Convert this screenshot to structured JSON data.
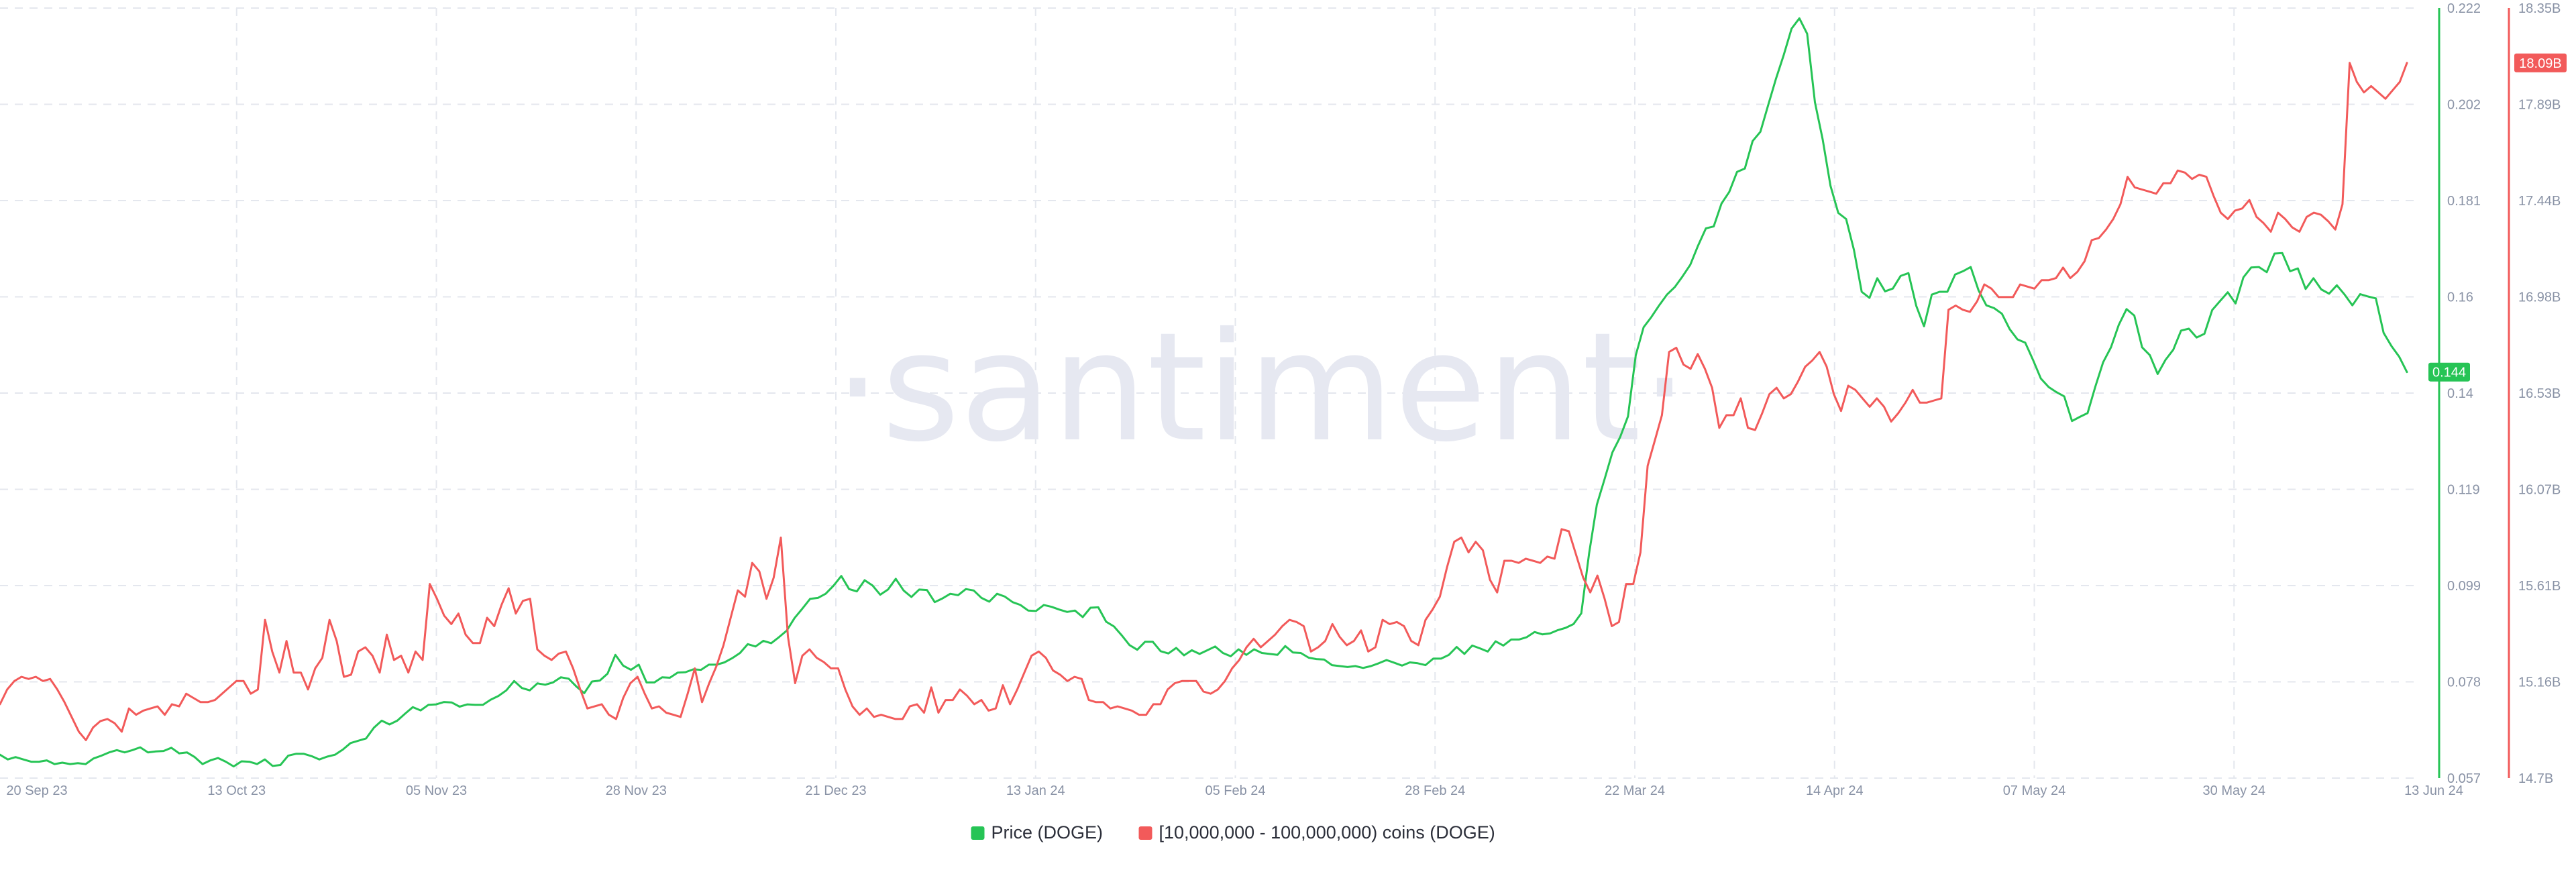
{
  "watermark": "·santiment·",
  "chart_data": {
    "type": "line",
    "title": "",
    "xlabel": "",
    "x_ticks": [
      "20 Sep 23",
      "13 Oct 23",
      "05 Nov 23",
      "28 Nov 23",
      "21 Dec 23",
      "13 Jan 24",
      "05 Feb 24",
      "28 Feb 24",
      "22 Mar 24",
      "14 Apr 24",
      "07 May 24",
      "30 May 24",
      "13 Jun 24"
    ],
    "grid": true,
    "legend_position": "bottom-center",
    "y_axes": {
      "left_inner": {
        "ticks": [
          "0.057",
          "0.078",
          "0.099",
          "0.119",
          "0.14",
          "0.16",
          "0.181",
          "0.202",
          "0.222"
        ],
        "range": [
          0.057,
          0.222
        ],
        "color": "#26c455"
      },
      "right": {
        "ticks": [
          "14.7B",
          "15.16B",
          "15.61B",
          "16.07B",
          "16.53B",
          "16.98B",
          "17.44B",
          "17.89B",
          "18.35B"
        ],
        "range": [
          14.7,
          18.35
        ],
        "unit": "B",
        "color": "#f25a5a"
      }
    },
    "series": [
      {
        "name": "Price (DOGE)",
        "axis": "left_inner",
        "color": "#26c455",
        "last_value_label": "0.144",
        "values": [
          0.062,
          0.061,
          0.0615,
          0.061,
          0.0605,
          0.0605,
          0.0608,
          0.06,
          0.0603,
          0.06,
          0.0602,
          0.06,
          0.0612,
          0.0618,
          0.0625,
          0.063,
          0.0625,
          0.063,
          0.0636,
          0.0625,
          0.0627,
          0.0628,
          0.0635,
          0.0623,
          0.0625,
          0.0615,
          0.06,
          0.0608,
          0.0613,
          0.0605,
          0.0595,
          0.0606,
          0.0605,
          0.06,
          0.061,
          0.0596,
          0.0598,
          0.0618,
          0.0622,
          0.0622,
          0.0617,
          0.061,
          0.0616,
          0.062,
          0.0631,
          0.0645,
          0.065,
          0.0655,
          0.0678,
          0.0693,
          0.0685,
          0.0693,
          0.0708,
          0.0722,
          0.0715,
          0.0727,
          0.0728,
          0.0733,
          0.0732,
          0.0723,
          0.0728,
          0.0727,
          0.0727,
          0.0738,
          0.0746,
          0.0758,
          0.0778,
          0.0763,
          0.0758,
          0.0773,
          0.077,
          0.0775,
          0.0786,
          0.0783,
          0.0766,
          0.0752,
          0.0777,
          0.0779,
          0.0794,
          0.0834,
          0.0811,
          0.0802,
          0.0813,
          0.0775,
          0.0775,
          0.0786,
          0.0785,
          0.0796,
          0.0797,
          0.0803,
          0.0802,
          0.0813,
          0.0813,
          0.0818,
          0.0827,
          0.0838,
          0.0857,
          0.0852,
          0.0864,
          0.0859,
          0.0872,
          0.0886,
          0.0913,
          0.0933,
          0.0954,
          0.0956,
          0.0965,
          0.0982,
          0.1003,
          0.0975,
          0.097,
          0.0994,
          0.0983,
          0.0963,
          0.0974,
          0.0997,
          0.0972,
          0.0958,
          0.0974,
          0.0973,
          0.0947,
          0.0955,
          0.0965,
          0.0962,
          0.0975,
          0.0972,
          0.0956,
          0.0948,
          0.0965,
          0.0959,
          0.0947,
          0.0941,
          0.0929,
          0.0928,
          0.0941,
          0.0937,
          0.0931,
          0.0926,
          0.0929,
          0.0915,
          0.0935,
          0.0936,
          0.0905,
          0.0895,
          0.0876,
          0.0855,
          0.0845,
          0.0862,
          0.0862,
          0.0842,
          0.0837,
          0.0849,
          0.0833,
          0.0844,
          0.0836,
          0.0844,
          0.0852,
          0.0838,
          0.0831,
          0.0846,
          0.0834,
          0.0846,
          0.0838,
          0.0836,
          0.0834,
          0.0853,
          0.0839,
          0.0838,
          0.0828,
          0.0825,
          0.0824,
          0.0812,
          0.081,
          0.0808,
          0.081,
          0.0806,
          0.081,
          0.0816,
          0.0823,
          0.0817,
          0.0811,
          0.0818,
          0.0816,
          0.0812,
          0.0826,
          0.0826,
          0.0834,
          0.0851,
          0.0836,
          0.0854,
          0.0848,
          0.0841,
          0.0863,
          0.0854,
          0.0867,
          0.0867,
          0.0872,
          0.0883,
          0.0878,
          0.088,
          0.0887,
          0.0892,
          0.09,
          0.0923,
          0.1051,
          0.1156,
          0.1211,
          0.1268,
          0.1301,
          0.1345,
          0.1476,
          0.1536,
          0.1558,
          0.1583,
          0.1606,
          0.1622,
          0.1645,
          0.167,
          0.1711,
          0.1748,
          0.1752,
          0.1801,
          0.1826,
          0.1869,
          0.1876,
          0.1935,
          0.1955,
          0.2012,
          0.2069,
          0.212,
          0.2176,
          0.2198,
          0.2165,
          0.2018,
          0.1938,
          0.1839,
          0.1781,
          0.1768,
          0.1702,
          0.1612,
          0.1599,
          0.1641,
          0.1613,
          0.1619,
          0.1646,
          0.1652,
          0.1582,
          0.1538,
          0.1606,
          0.1612,
          0.1612,
          0.1649,
          0.1656,
          0.1665,
          0.1615,
          0.1583,
          0.1577,
          0.1565,
          0.1532,
          0.151,
          0.1503,
          0.1466,
          0.1426,
          0.1408,
          0.1397,
          0.1388,
          0.1335,
          0.1344,
          0.1352,
          0.1409,
          0.1461,
          0.1493,
          0.1541,
          0.1575,
          0.1561,
          0.1493,
          0.1476,
          0.1436,
          0.1466,
          0.1488,
          0.1529,
          0.1533,
          0.1514,
          0.1522,
          0.1573,
          0.1592,
          0.1611,
          0.1587,
          0.1643,
          0.1664,
          0.1665,
          0.1654,
          0.1694,
          0.1695,
          0.1656,
          0.1662,
          0.1618,
          0.1641,
          0.1617,
          0.1608,
          0.1626,
          0.1606,
          0.1583,
          0.1607,
          0.1602,
          0.1598,
          0.1524,
          0.1496,
          0.1473,
          0.144
        ],
        "note_values": "daily closing prices estimated from gridlines"
      },
      {
        "name": "[10,000,000 - 100,000,000) coins (DOGE)",
        "axis": "right",
        "color": "#f25a5a",
        "last_value_label": "18.09B",
        "values": [
          15.05,
          15.12,
          15.16,
          15.18,
          15.17,
          15.18,
          15.16,
          15.17,
          15.12,
          15.06,
          14.99,
          14.92,
          14.88,
          14.94,
          14.97,
          14.98,
          14.96,
          14.92,
          15.03,
          15.0,
          15.02,
          15.03,
          15.04,
          15.0,
          15.05,
          15.04,
          15.1,
          15.08,
          15.06,
          15.06,
          15.07,
          15.1,
          15.13,
          15.16,
          15.16,
          15.1,
          15.12,
          15.45,
          15.3,
          15.2,
          15.35,
          15.2,
          15.2,
          15.12,
          15.22,
          15.27,
          15.45,
          15.35,
          15.18,
          15.19,
          15.3,
          15.32,
          15.28,
          15.2,
          15.38,
          15.26,
          15.28,
          15.2,
          15.3,
          15.26,
          15.62,
          15.55,
          15.47,
          15.43,
          15.48,
          15.38,
          15.34,
          15.34,
          15.46,
          15.42,
          15.52,
          15.6,
          15.48,
          15.54,
          15.55,
          15.31,
          15.28,
          15.26,
          15.29,
          15.3,
          15.22,
          15.12,
          15.03,
          15.04,
          15.05,
          15.0,
          14.98,
          15.08,
          15.15,
          15.18,
          15.1,
          15.03,
          15.04,
          15.01,
          15.0,
          14.99,
          15.1,
          15.22,
          15.06,
          15.15,
          15.23,
          15.33,
          15.46,
          15.59,
          15.56,
          15.72,
          15.68,
          15.55,
          15.65,
          15.84,
          15.37,
          15.15,
          15.28,
          15.31,
          15.27,
          15.25,
          15.22,
          15.22,
          15.12,
          15.04,
          15.0,
          15.03,
          14.99,
          15.0,
          14.99,
          14.98,
          14.98,
          15.04,
          15.05,
          15.01,
          15.13,
          15.01,
          15.07,
          15.07,
          15.12,
          15.09,
          15.05,
          15.07,
          15.02,
          15.03,
          15.14,
          15.05,
          15.12,
          15.2,
          15.28,
          15.3,
          15.27,
          15.21,
          15.19,
          15.16,
          15.18,
          15.17,
          15.07,
          15.06,
          15.06,
          15.03,
          15.04,
          15.03,
          15.02,
          15.0,
          15.0,
          15.05,
          15.05,
          15.12,
          15.15,
          15.16,
          15.16,
          15.16,
          15.11,
          15.1,
          15.12,
          15.16,
          15.22,
          15.26,
          15.32,
          15.36,
          15.32,
          15.35,
          15.38,
          15.42,
          15.45,
          15.44,
          15.42,
          15.3,
          15.32,
          15.35,
          15.43,
          15.37,
          15.33,
          15.35,
          15.4,
          15.3,
          15.32,
          15.45,
          15.43,
          15.44,
          15.42,
          15.35,
          15.33,
          15.45,
          15.5,
          15.56,
          15.7,
          15.82,
          15.84,
          15.77,
          15.82,
          15.78,
          15.64,
          15.58,
          15.73,
          15.73,
          15.72,
          15.74,
          15.73,
          15.72,
          15.75,
          15.74,
          15.88,
          15.87,
          15.76,
          15.65,
          15.58,
          15.66,
          15.55,
          15.42,
          15.44,
          15.62,
          15.62,
          15.77,
          16.18,
          16.3,
          16.42,
          16.72,
          16.74,
          16.66,
          16.64,
          16.71,
          16.64,
          16.55,
          16.36,
          16.42,
          16.42,
          16.5,
          16.36,
          16.35,
          16.43,
          16.52,
          16.55,
          16.5,
          16.52,
          16.58,
          16.65,
          16.68,
          16.72,
          16.65,
          16.52,
          16.44,
          16.56,
          16.54,
          16.5,
          16.46,
          16.5,
          16.46,
          16.39,
          16.43,
          16.48,
          16.54,
          16.48,
          16.48,
          16.49,
          16.5,
          16.92,
          16.94,
          16.92,
          16.91,
          16.96,
          17.04,
          17.02,
          16.98,
          16.98,
          16.98,
          17.04,
          17.03,
          17.02,
          17.06,
          17.06,
          17.07,
          17.12,
          17.07,
          17.1,
          17.15,
          17.25,
          17.26,
          17.3,
          17.35,
          17.42,
          17.55,
          17.5,
          17.49,
          17.48,
          17.47,
          17.52,
          17.52,
          17.58,
          17.57,
          17.54,
          17.56,
          17.55,
          17.46,
          17.38,
          17.35,
          17.39,
          17.4,
          17.44,
          17.36,
          17.33,
          17.29,
          17.38,
          17.35,
          17.31,
          17.29,
          17.36,
          17.38,
          17.37,
          17.34,
          17.3,
          17.42,
          18.09,
          18.0,
          17.95,
          17.98,
          17.95,
          17.92,
          17.96,
          18.0,
          18.09
        ]
      }
    ]
  },
  "legend": {
    "items": [
      {
        "label": "Price (DOGE)",
        "color": "#26c455"
      },
      {
        "label": "[10,000,000 - 100,000,000) coins (DOGE)",
        "color": "#f25a5a"
      }
    ]
  }
}
